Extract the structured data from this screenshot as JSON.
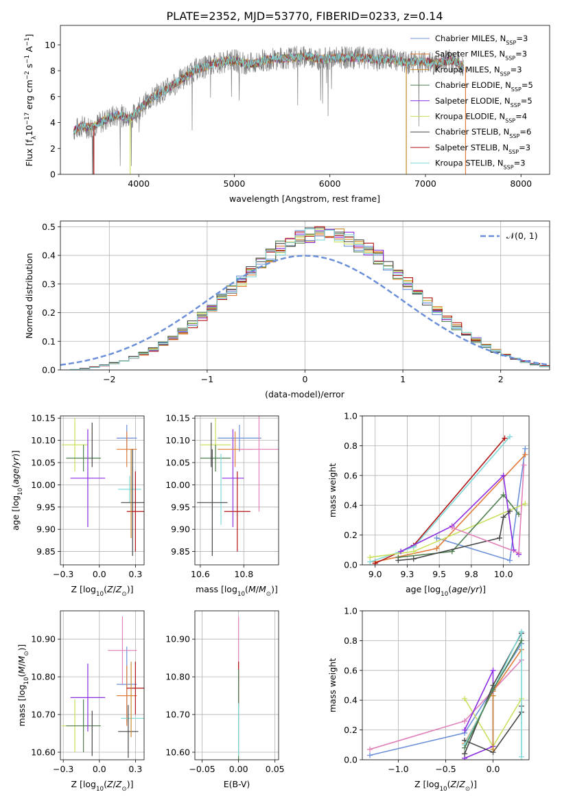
{
  "title": "PLATE=2352, MJD=53770, FIBERID=0233, z=0.14",
  "colors": {
    "chab_miles": "#6a8fd8",
    "salp_miles": "#e07b39",
    "krou_miles": "#c98a2a",
    "chab_elodie": "#4d7d4d",
    "salp_elodie": "#8a2be2",
    "krou_elodie": "#c8e05a",
    "chab_stelib": "#444444",
    "salp_stelib": "#b01010",
    "krou_stelib": "#7fd8d8",
    "pink": "#e07fb8",
    "spectrum_gray": "#7f7f7f",
    "normal": "#6a8fd8"
  },
  "chart_data": [
    {
      "id": "spectrum",
      "type": "line",
      "xlabel": "wavelength [Angstrom, rest frame]",
      "ylabel": "Flux [f_λ10^-17 erg cm^-2 s^-1 A^-1]",
      "xlim": [
        3180,
        8300
      ],
      "ylim": [
        0,
        11.5
      ],
      "xticks": [
        4000,
        5000,
        6000,
        7000,
        8000
      ],
      "yticks": [
        0,
        2,
        4,
        6,
        8,
        10
      ],
      "legend_position": "top-right",
      "legend": [
        {
          "label": "Chabrier MILES, N",
          "sub": "SSP",
          "tail": "=3",
          "color": "chab_miles"
        },
        {
          "label": "Salpeter MILES, N",
          "sub": "SSP",
          "tail": "=3",
          "color": "salp_miles"
        },
        {
          "label": "Kroupa MILES, N",
          "sub": "SSP",
          "tail": "=3",
          "color": "krou_miles"
        },
        {
          "label": "Chabrier ELODIE, N",
          "sub": "SSP",
          "tail": "=5",
          "color": "chab_elodie"
        },
        {
          "label": "Salpeter ELODIE, N",
          "sub": "SSP",
          "tail": "=5",
          "color": "salp_elodie"
        },
        {
          "label": "Kroupa ELODIE, N",
          "sub": "SSP",
          "tail": "=4",
          "color": "krou_elodie"
        },
        {
          "label": "Chabrier STELIB, N",
          "sub": "SSP",
          "tail": "=6",
          "color": "chab_stelib"
        },
        {
          "label": "Salpeter STELIB, N",
          "sub": "SSP",
          "tail": "=3",
          "color": "salp_stelib"
        },
        {
          "label": "Kroupa STELIB, N",
          "sub": "SSP",
          "tail": "=3",
          "color": "krou_stelib"
        }
      ],
      "continuum": [
        [
          3320,
          3.4
        ],
        [
          3400,
          3.7
        ],
        [
          3500,
          3.6
        ],
        [
          3600,
          4.0
        ],
        [
          3700,
          4.4
        ],
        [
          3800,
          4.6
        ],
        [
          3900,
          4.2
        ],
        [
          4000,
          5.0
        ],
        [
          4100,
          5.7
        ],
        [
          4200,
          6.2
        ],
        [
          4300,
          6.6
        ],
        [
          4400,
          7.1
        ],
        [
          4500,
          7.6
        ],
        [
          4600,
          8.1
        ],
        [
          4700,
          8.3
        ],
        [
          4800,
          8.6
        ],
        [
          4900,
          8.7
        ],
        [
          5000,
          8.8
        ],
        [
          5100,
          8.6
        ],
        [
          5200,
          8.5
        ],
        [
          5300,
          8.8
        ],
        [
          5400,
          8.9
        ],
        [
          5500,
          8.95
        ],
        [
          5600,
          9.0
        ],
        [
          5700,
          9.05
        ],
        [
          5800,
          9.1
        ],
        [
          5900,
          8.9
        ],
        [
          6000,
          8.95
        ],
        [
          6100,
          9.0
        ],
        [
          6200,
          9.0
        ],
        [
          6300,
          9.0
        ],
        [
          6400,
          8.95
        ],
        [
          6500,
          8.85
        ],
        [
          6600,
          8.95
        ],
        [
          6700,
          8.8
        ],
        [
          6800,
          8.6
        ],
        [
          6900,
          8.75
        ],
        [
          7000,
          8.7
        ],
        [
          7100,
          8.5
        ],
        [
          7200,
          8.75
        ],
        [
          7300,
          8.8
        ],
        [
          7400,
          8.3
        ]
      ],
      "model_drops": [
        {
          "x": 3530,
          "color": "salp_stelib"
        },
        {
          "x": 3910,
          "color": "krou_elodie"
        },
        {
          "x": 6800,
          "color": "krou_miles"
        },
        {
          "x": 7420,
          "color": "salp_miles"
        }
      ]
    },
    {
      "id": "residuals",
      "type": "step",
      "xlabel": "(data-model)/error",
      "ylabel": "Normed distribution",
      "xlim": [
        -2.5,
        2.5
      ],
      "ylim": [
        0,
        0.52
      ],
      "xticks": [
        -2,
        -1,
        0,
        1,
        2
      ],
      "yticks": [
        0.0,
        0.1,
        0.2,
        0.3,
        0.4,
        0.5
      ],
      "grid": true,
      "legend": [
        {
          "label": "𝒩(0, 1)",
          "color": "normal",
          "style": "dashed"
        }
      ],
      "legend_position": "top-right"
    },
    {
      "id": "age_vs_Z",
      "type": "errorbar",
      "xlabel": "Z [log10(Z/Z⊙)]",
      "ylabel": "age [log10(age/yr)]",
      "xlim": [
        -0.27,
        0.31
      ],
      "ylim": [
        9.82,
        10.155
      ],
      "xticks": [
        -0.25,
        0.0,
        0.25
      ],
      "yticks": [
        9.85,
        9.9,
        9.95,
        10.0,
        10.05,
        10.1,
        10.15
      ],
      "points": [
        {
          "x": -0.17,
          "y": 10.09,
          "xe": 0.09,
          "ye": 0.06,
          "color": "krou_elodie"
        },
        {
          "x": -0.11,
          "y": 10.06,
          "xe": 0.12,
          "ye": 0.03,
          "color": "chab_elodie"
        },
        {
          "x": -0.08,
          "y": 10.015,
          "xe": 0.12,
          "ye": 0.11,
          "color": "salp_elodie"
        },
        {
          "x": -0.05,
          "y": 10.09,
          "xe": 0.0,
          "ye": 0.05,
          "color": "chab_stelib"
        },
        {
          "x": 0.19,
          "y": 10.105,
          "xe": 0.07,
          "ye": 0.03,
          "color": "chab_miles"
        },
        {
          "x": 0.19,
          "y": 10.08,
          "xe": 0.07,
          "ye": 0.04,
          "color": "salp_miles"
        },
        {
          "x": 0.21,
          "y": 9.99,
          "xe": 0.08,
          "ye": 0.03,
          "color": "krou_stelib"
        },
        {
          "x": 0.23,
          "y": 9.96,
          "xe": 0.08,
          "ye": 0.12,
          "color": "chab_stelib"
        },
        {
          "x": 0.25,
          "y": 9.94,
          "xe": 0.06,
          "ye": 0.09,
          "color": "salp_stelib"
        },
        {
          "x": 0.22,
          "y": 9.98,
          "xe": 0.0,
          "ye": 0.1,
          "color": "krou_miles"
        }
      ]
    },
    {
      "id": "age_vs_mass",
      "type": "errorbar",
      "xlabel": "mass [log10(M/M⊙)]",
      "ylabel": "",
      "xlim": [
        10.575,
        10.96
      ],
      "ylim": [
        9.82,
        10.155
      ],
      "xticks": [
        10.6,
        10.8
      ],
      "yticks": [
        9.85,
        9.9,
        9.95,
        10.0,
        10.05,
        10.1,
        10.15
      ],
      "points": [
        {
          "x": 10.67,
          "y": 10.09,
          "xe": 0.07,
          "ye": 0.06,
          "color": "krou_elodie"
        },
        {
          "x": 10.67,
          "y": 10.06,
          "xe": 0.07,
          "ye": 0.03,
          "color": "chab_elodie"
        },
        {
          "x": 10.75,
          "y": 10.015,
          "xe": 0.05,
          "ye": 0.11,
          "color": "salp_elodie"
        },
        {
          "x": 10.65,
          "y": 10.09,
          "xe": 0.0,
          "ye": 0.05,
          "color": "chab_stelib"
        },
        {
          "x": 10.78,
          "y": 10.105,
          "xe": 0.1,
          "ye": 0.03,
          "color": "chab_miles"
        },
        {
          "x": 10.76,
          "y": 10.08,
          "xe": 0.08,
          "ye": 0.04,
          "color": "salp_miles"
        },
        {
          "x": 10.695,
          "y": 9.99,
          "xe": 0.0,
          "ye": 0.08,
          "color": "krou_stelib"
        },
        {
          "x": 10.655,
          "y": 9.96,
          "xe": 0.07,
          "ye": 0.12,
          "color": "chab_stelib"
        },
        {
          "x": 10.77,
          "y": 9.94,
          "xe": 0.06,
          "ye": 0.09,
          "color": "salp_stelib"
        },
        {
          "x": 10.87,
          "y": 10.08,
          "xe": 0.09,
          "ye": 0.14,
          "color": "pink"
        }
      ]
    },
    {
      "id": "massweight_vs_age",
      "type": "line",
      "xlabel": "age [log10(age/yr)]",
      "ylabel": "mass weight",
      "xlim": [
        8.9,
        10.2
      ],
      "ylim": [
        0,
        1
      ],
      "xticks": [
        9.0,
        9.25,
        9.5,
        9.75,
        10.0
      ],
      "yticks": [
        0.0,
        0.2,
        0.4,
        0.6,
        0.8,
        1.0
      ],
      "grid": true,
      "series": [
        {
          "color": "chab_miles",
          "x": [
            9.48,
            10.05,
            10.17
          ],
          "y": [
            0.18,
            0.03,
            0.78
          ]
        },
        {
          "color": "salp_miles",
          "x": [
            9.0,
            9.48,
            10.17
          ],
          "y": [
            0.02,
            0.11,
            0.74
          ]
        },
        {
          "color": "salp_stelib",
          "x": [
            9.0,
            9.3,
            10.01
          ],
          "y": [
            0.01,
            0.13,
            0.85
          ]
        },
        {
          "color": "krou_stelib",
          "x": [
            8.96,
            9.3,
            10.05
          ],
          "y": [
            0.02,
            0.12,
            0.86
          ]
        },
        {
          "color": "krou_elodie",
          "x": [
            8.96,
            9.3,
            10.17
          ],
          "y": [
            0.05,
            0.09,
            0.41
          ]
        },
        {
          "color": "chab_elodie",
          "x": [
            9.18,
            9.6,
            10.0,
            10.12
          ],
          "y": [
            0.05,
            0.09,
            0.47,
            0.34
          ]
        },
        {
          "color": "salp_elodie",
          "x": [
            9.2,
            9.6,
            10.0,
            10.08,
            10.12
          ],
          "y": [
            0.09,
            0.26,
            0.6,
            0.1,
            0.07
          ]
        },
        {
          "color": "chab_stelib",
          "x": [
            9.18,
            9.3,
            9.97,
            10.0,
            10.05
          ],
          "y": [
            0.03,
            0.04,
            0.18,
            0.32,
            0.36
          ]
        },
        {
          "color": "pink",
          "x": [
            9.6,
            10.12,
            10.16
          ],
          "y": [
            0.25,
            0.08,
            0.67
          ]
        }
      ]
    },
    {
      "id": "mass_vs_Z",
      "type": "errorbar",
      "xlabel": "Z [log10(Z/Z⊙)]",
      "ylabel": "mass [log10(M/M⊙)]",
      "xlim": [
        -0.27,
        0.31
      ],
      "ylim": [
        10.58,
        10.975
      ],
      "xticks": [
        -0.25,
        0.0,
        0.25
      ],
      "yticks": [
        10.6,
        10.7,
        10.8,
        10.9
      ],
      "points": [
        {
          "x": -0.17,
          "y": 10.67,
          "xe": 0.09,
          "ye": 0.07,
          "color": "krou_elodie"
        },
        {
          "x": -0.11,
          "y": 10.67,
          "xe": 0.12,
          "ye": 0.07,
          "color": "chab_elodie"
        },
        {
          "x": -0.08,
          "y": 10.745,
          "xe": 0.12,
          "ye": 0.09,
          "color": "salp_elodie"
        },
        {
          "x": -0.05,
          "y": 10.65,
          "xe": 0.0,
          "ye": 0.06,
          "color": "chab_stelib"
        },
        {
          "x": 0.19,
          "y": 10.78,
          "xe": 0.07,
          "ye": 0.1,
          "color": "chab_miles"
        },
        {
          "x": 0.19,
          "y": 10.75,
          "xe": 0.07,
          "ye": 0.08,
          "color": "salp_miles"
        },
        {
          "x": 0.23,
          "y": 10.69,
          "xe": 0.08,
          "ye": 0.0,
          "color": "krou_stelib"
        },
        {
          "x": 0.2,
          "y": 10.655,
          "xe": 0.07,
          "ye": 0.07,
          "color": "chab_stelib"
        },
        {
          "x": 0.25,
          "y": 10.77,
          "xe": 0.06,
          "ye": 0.07,
          "color": "salp_stelib"
        },
        {
          "x": 0.16,
          "y": 10.87,
          "xe": 0.1,
          "ye": 0.09,
          "color": "pink"
        },
        {
          "x": 0.22,
          "y": 10.74,
          "xe": 0.0,
          "ye": 0.1,
          "color": "krou_miles"
        }
      ]
    },
    {
      "id": "mass_vs_ebv",
      "type": "errorbar",
      "xlabel": "E(B-V)",
      "ylabel": "",
      "xlim": [
        -0.06,
        0.055
      ],
      "ylim": [
        10.58,
        10.975
      ],
      "xticks": [
        -0.05,
        0.0,
        0.05
      ],
      "yticks": [
        10.6,
        10.7,
        10.8,
        10.9
      ],
      "points": [
        {
          "x": 0.0,
          "y": 10.87,
          "xe": 0.0,
          "ye": 0.09,
          "color": "pink"
        },
        {
          "x": 0.0,
          "y": 10.78,
          "xe": 0.0,
          "ye": 0.06,
          "color": "salp_stelib"
        },
        {
          "x": 0.0,
          "y": 10.7,
          "xe": 0.0,
          "ye": 0.12,
          "color": "chab_elodie"
        },
        {
          "x": 0.0,
          "y": 10.66,
          "xe": 0.0,
          "ye": 0.07,
          "color": "krou_stelib"
        }
      ]
    },
    {
      "id": "massweight_vs_Z",
      "type": "line",
      "xlabel": "Z [log10(Z/Z⊙)]",
      "ylabel": "mass weight",
      "xlim": [
        -1.38,
        0.38
      ],
      "ylim": [
        0,
        1
      ],
      "xticks": [
        -1.0,
        -0.5,
        0.0
      ],
      "yticks": [
        0.0,
        0.2,
        0.4,
        0.6,
        0.8,
        1.0
      ],
      "grid": true,
      "series": [
        {
          "color": "chab_miles",
          "x": [
            -1.3,
            -0.3,
            0.3,
            0.3
          ],
          "y": [
            0.03,
            0.18,
            0.78,
            0.78
          ]
        },
        {
          "color": "pink",
          "x": [
            -1.3,
            -0.3,
            0.3
          ],
          "y": [
            0.07,
            0.26,
            0.67
          ]
        },
        {
          "color": "salp_miles",
          "x": [
            -0.3,
            0.0,
            0.3
          ],
          "y": [
            0.11,
            0.46,
            0.74
          ]
        },
        {
          "color": "krou_elodie",
          "x": [
            -0.3,
            0.0,
            0.3
          ],
          "y": [
            0.41,
            0.09,
            0.41
          ]
        },
        {
          "color": "salp_elodie",
          "x": [
            -0.3,
            0.0,
            0.0,
            -0.3
          ],
          "y": [
            0.01,
            0.09,
            0.6,
            0.2
          ]
        },
        {
          "color": "chab_stelib",
          "x": [
            -0.3,
            0.0,
            0.3
          ],
          "y": [
            0.04,
            0.5,
            0.85
          ]
        },
        {
          "color": "chab_stelib",
          "x": [
            -0.3,
            0.0,
            0.3,
            0.3
          ],
          "y": [
            0.13,
            0.05,
            0.32,
            0.36
          ]
        },
        {
          "color": "krou_stelib",
          "x": [
            -0.3,
            0.0,
            0.3,
            0.3
          ],
          "y": [
            0.1,
            0.47,
            0.86,
            0.02
          ]
        },
        {
          "color": "chab_elodie",
          "x": [
            -0.3,
            0.0,
            0.3
          ],
          "y": [
            0.08,
            0.47,
            0.8
          ]
        },
        {
          "color": "krou_miles",
          "x": [
            0.0,
            0.0
          ],
          "y": [
            0.07,
            0.43
          ]
        }
      ]
    }
  ]
}
